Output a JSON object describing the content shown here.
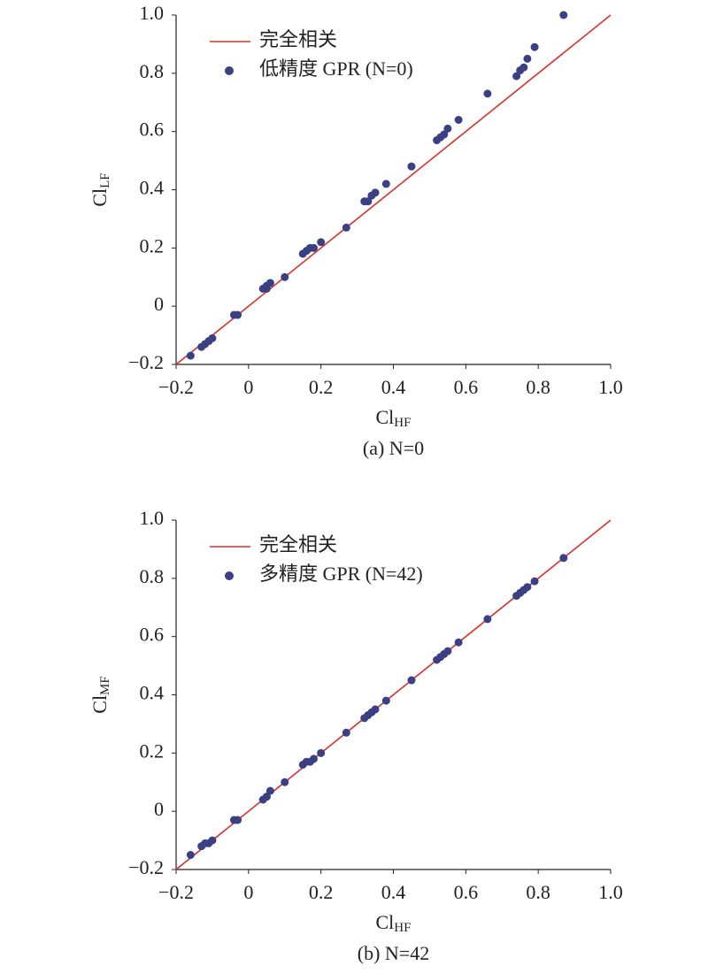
{
  "chart_data": [
    {
      "type": "scatter",
      "xlabel": {
        "text": "Cl",
        "sub": "HF"
      },
      "ylabel": {
        "text": "Cl",
        "sub": "LF"
      },
      "caption": "(a) N=0",
      "xlim": [
        -0.2,
        1.0
      ],
      "ylim": [
        -0.2,
        1.0
      ],
      "xticks": [
        {
          "value": -0.2,
          "label": "−0.2"
        },
        0,
        0.2,
        0.4,
        0.6,
        0.8,
        {
          "value": 1.0,
          "label": "1.0"
        }
      ],
      "yticks": [
        {
          "value": -0.2,
          "label": "−0.2"
        },
        0,
        0.2,
        0.4,
        0.6,
        0.8,
        {
          "value": 1.0,
          "label": "1.0"
        }
      ],
      "legend": "upper left",
      "series": [
        {
          "name": "完全相关",
          "type": "line",
          "color": "#d9302c",
          "x": [
            -0.2,
            1.0
          ],
          "values": [
            -0.2,
            1.0
          ]
        },
        {
          "name": "低精度 GPR (N=0)",
          "type": "scatter",
          "color": "#3b3f83",
          "x": [
            -0.16,
            -0.13,
            -0.12,
            -0.11,
            -0.1,
            -0.04,
            -0.03,
            0.04,
            0.05,
            0.05,
            0.06,
            0.1,
            0.15,
            0.16,
            0.17,
            0.18,
            0.2,
            0.27,
            0.32,
            0.33,
            0.34,
            0.35,
            0.38,
            0.45,
            0.52,
            0.53,
            0.54,
            0.55,
            0.58,
            0.66,
            0.74,
            0.75,
            0.76,
            0.77,
            0.79,
            0.87
          ],
          "values": [
            -0.17,
            -0.14,
            -0.13,
            -0.12,
            -0.11,
            -0.03,
            -0.03,
            0.06,
            0.06,
            0.07,
            0.08,
            0.1,
            0.18,
            0.19,
            0.2,
            0.2,
            0.22,
            0.27,
            0.36,
            0.36,
            0.38,
            0.39,
            0.42,
            0.48,
            0.57,
            0.58,
            0.59,
            0.61,
            0.64,
            0.73,
            0.79,
            0.81,
            0.82,
            0.85,
            0.89,
            1.0
          ]
        }
      ]
    },
    {
      "type": "scatter",
      "xlabel": {
        "text": "Cl",
        "sub": "HF"
      },
      "ylabel": {
        "text": "Cl",
        "sub": "MF"
      },
      "caption": "(b) N=42",
      "xlim": [
        -0.2,
        1.0
      ],
      "ylim": [
        -0.2,
        1.0
      ],
      "xticks": [
        {
          "value": -0.2,
          "label": "−0.2"
        },
        0,
        0.2,
        0.4,
        0.6,
        0.8,
        {
          "value": 1.0,
          "label": "1.0"
        }
      ],
      "yticks": [
        {
          "value": -0.2,
          "label": "−0.2"
        },
        0,
        0.2,
        0.4,
        0.6,
        0.8,
        {
          "value": 1.0,
          "label": "1.0"
        }
      ],
      "legend": "upper left",
      "series": [
        {
          "name": "完全相关",
          "type": "line",
          "color": "#d9302c",
          "x": [
            -0.2,
            1.0
          ],
          "values": [
            -0.2,
            1.0
          ]
        },
        {
          "name": "多精度 GPR (N=42)",
          "type": "scatter",
          "color": "#3b3f83",
          "x": [
            -0.16,
            -0.13,
            -0.12,
            -0.11,
            -0.1,
            -0.04,
            -0.03,
            0.04,
            0.05,
            0.05,
            0.06,
            0.1,
            0.15,
            0.16,
            0.17,
            0.18,
            0.2,
            0.27,
            0.32,
            0.33,
            0.34,
            0.35,
            0.38,
            0.45,
            0.52,
            0.53,
            0.54,
            0.55,
            0.58,
            0.66,
            0.74,
            0.75,
            0.76,
            0.77,
            0.79,
            0.87
          ],
          "values": [
            -0.15,
            -0.12,
            -0.11,
            -0.11,
            -0.1,
            -0.03,
            -0.03,
            0.04,
            0.05,
            0.05,
            0.07,
            0.1,
            0.16,
            0.17,
            0.17,
            0.18,
            0.2,
            0.27,
            0.32,
            0.33,
            0.34,
            0.35,
            0.38,
            0.45,
            0.52,
            0.53,
            0.54,
            0.55,
            0.58,
            0.66,
            0.74,
            0.75,
            0.76,
            0.77,
            0.79,
            0.87
          ]
        }
      ]
    }
  ]
}
